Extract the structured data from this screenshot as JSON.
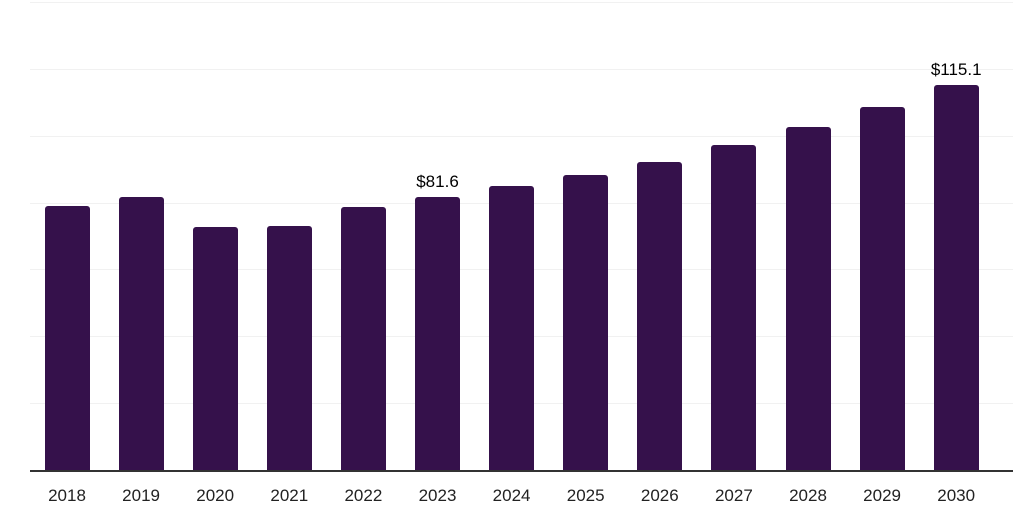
{
  "chart_data": {
    "type": "bar",
    "title": "",
    "categories": [
      "2018",
      "2019",
      "2020",
      "2021",
      "2022",
      "2023",
      "2024",
      "2025",
      "2026",
      "2027",
      "2028",
      "2029",
      "2030"
    ],
    "values": [
      78.9,
      81.8,
      72.8,
      73.1,
      78.7,
      81.6,
      84.9,
      88.4,
      92.1,
      97.3,
      102.5,
      108.5,
      115.1
    ],
    "data_labels": [
      "",
      "",
      "",
      "",
      "",
      "$81.6",
      "",
      "",
      "",
      "",
      "",
      "",
      "$115.1"
    ],
    "xlabel": "",
    "ylabel": "",
    "ylim": [
      0,
      140
    ],
    "grid_step": 20,
    "grid": "horizontal",
    "legend": "none",
    "colors": {
      "bar": "#35114B",
      "axis_line": "#333333",
      "gridline": "#f1f1f1",
      "data_label": "#000000",
      "tick_label": "#222222",
      "background": "#ffffff"
    }
  }
}
